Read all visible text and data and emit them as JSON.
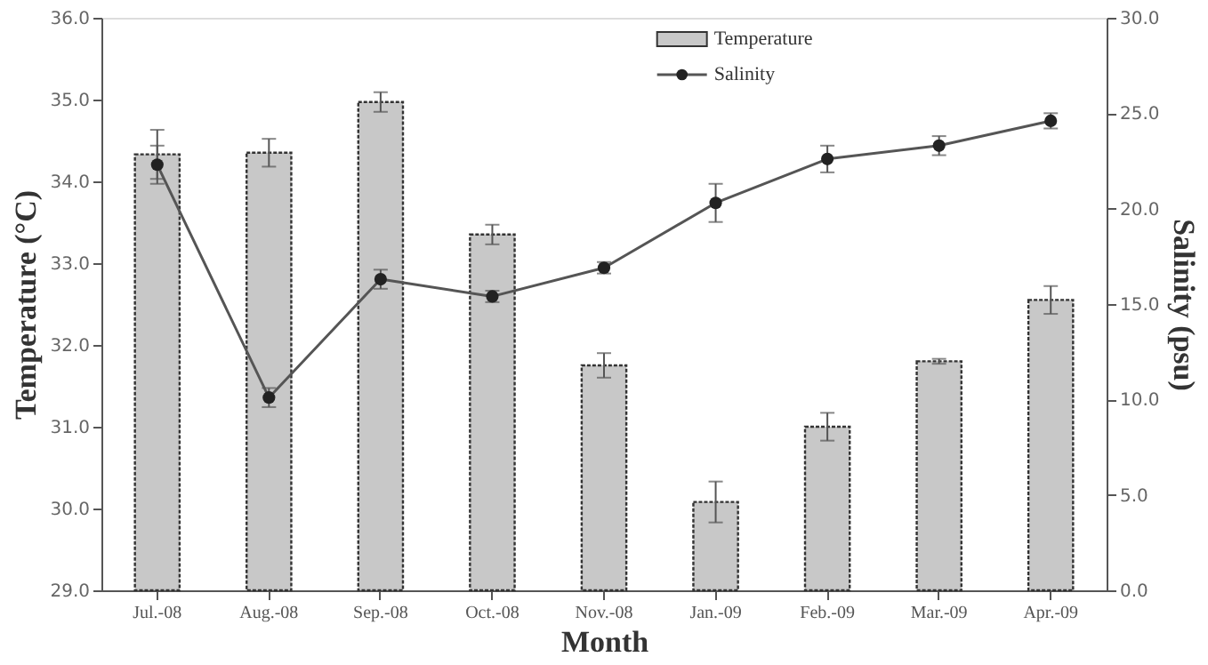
{
  "chart_data": {
    "type": "bar",
    "xlabel": "Month",
    "ylabel": "Temperature (°C)",
    "y2label": "Salinity (psu)",
    "categories": [
      "Jul.-08",
      "Aug.-08",
      "Sep.-08",
      "Oct.-08",
      "Nov.-08",
      "Jan.-09",
      "Feb.-09",
      "Mar.-09",
      "Apr.-09"
    ],
    "series": [
      {
        "name": "Temperature",
        "color": "#c8c8c8",
        "values": [
          34.33,
          34.35,
          34.97,
          33.35,
          31.75,
          30.08,
          31.0,
          31.8,
          32.55
        ],
        "errors": [
          0.3,
          0.17,
          0.12,
          0.12,
          0.15,
          0.25,
          0.17,
          0.03,
          0.17
        ]
      },
      {
        "name": "Salinity",
        "type": "line",
        "axis": "y2",
        "color": "#222222",
        "marker": "circle",
        "values": [
          22.3,
          10.1,
          16.3,
          15.4,
          16.9,
          20.3,
          22.6,
          23.3,
          24.6
        ],
        "errors": [
          1.0,
          0.5,
          0.5,
          0.3,
          0.3,
          1.0,
          0.7,
          0.5,
          0.4
        ]
      }
    ],
    "ylim": [
      29.0,
      36.0
    ],
    "yticks": [
      {
        "value": 29,
        "label": "29.0"
      },
      {
        "value": 30,
        "label": "30.0"
      },
      {
        "value": 31,
        "label": "31.0"
      },
      {
        "value": 32,
        "label": "32.0"
      },
      {
        "value": 33,
        "label": "33.0"
      },
      {
        "value": 34,
        "label": "34.0"
      },
      {
        "value": 35,
        "label": "35.0"
      },
      {
        "value": 36,
        "label": "36.0"
      }
    ],
    "y2lim": [
      0.0,
      30.0
    ],
    "y2ticks": [
      {
        "value": 0,
        "label": "0.0"
      },
      {
        "value": 5,
        "label": "5.0"
      },
      {
        "value": 10,
        "label": "10.0"
      },
      {
        "value": 15,
        "label": "15.0"
      },
      {
        "value": 20,
        "label": "20.0"
      },
      {
        "value": 25,
        "label": "25.0"
      },
      {
        "value": 30,
        "label": "30.0"
      }
    ],
    "grid": false,
    "legend": "top"
  }
}
